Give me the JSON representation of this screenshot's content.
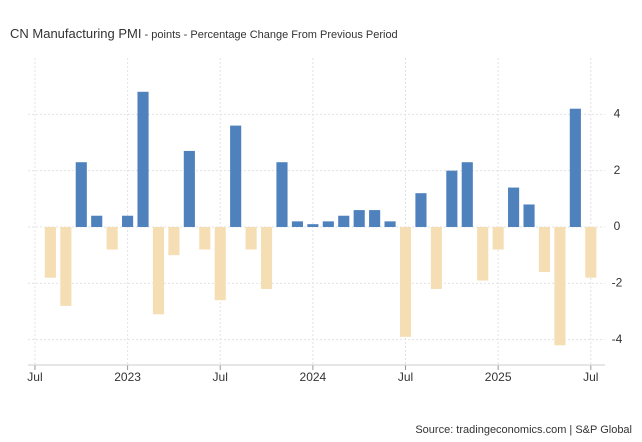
{
  "chart_data": {
    "type": "bar",
    "title": "CN Manufacturing PMI",
    "subtitle": " - points - Percentage Change From Previous Period",
    "source": "Source: tradingeconomics.com | S&P Global",
    "x": [
      1,
      2,
      3,
      4,
      5,
      6,
      7,
      8,
      9,
      10,
      11,
      12,
      13,
      14,
      15,
      16,
      17,
      18,
      19,
      20,
      21,
      22,
      23,
      24,
      25,
      26,
      27,
      28,
      29,
      30,
      31,
      32,
      33,
      34,
      35,
      36
    ],
    "values": [
      -1.8,
      -2.8,
      2.3,
      0.4,
      -0.8,
      0.4,
      4.8,
      -3.1,
      -1.0,
      2.7,
      -0.8,
      -2.6,
      3.6,
      -0.8,
      -2.2,
      2.3,
      0.2,
      0.1,
      0.2,
      0.4,
      0.6,
      0.6,
      0.2,
      -3.9,
      1.2,
      -2.2,
      2.0,
      2.3,
      -1.9,
      -0.8,
      1.4,
      0.8,
      -1.6,
      -4.2,
      4.2,
      -1.8
    ],
    "positive_color": "#4f81bd",
    "negative_color": "#f5deb3",
    "xlim": [
      -0.45,
      36.92
    ],
    "xticks": [
      {
        "value": 0,
        "label": "Jul"
      },
      {
        "value": 6,
        "label": "2023"
      },
      {
        "value": 12,
        "label": "Jul"
      },
      {
        "value": 18,
        "label": "2024"
      },
      {
        "value": 24,
        "label": "Jul"
      },
      {
        "value": 30,
        "label": "2025"
      },
      {
        "value": 36,
        "label": "Jul"
      }
    ],
    "ylim": [
      -4.9,
      6
    ],
    "yticks": [
      -4,
      -2,
      0,
      2,
      4
    ],
    "grid": true
  }
}
